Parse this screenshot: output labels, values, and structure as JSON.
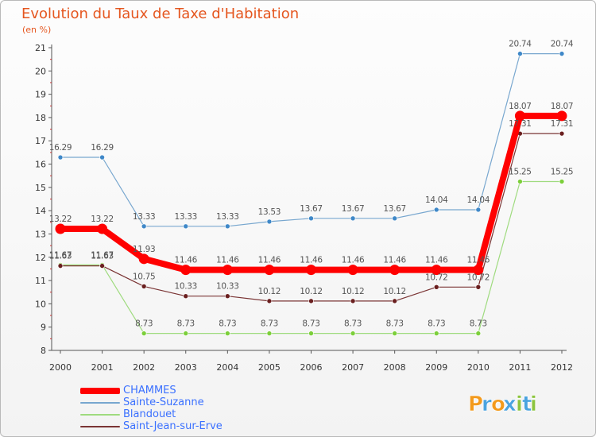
{
  "chart_data": {
    "type": "line",
    "title": "Evolution du Taux de Taxe d'Habitation",
    "subtitle": "(en %)",
    "x": [
      "2000",
      "2001",
      "2002",
      "2003",
      "2004",
      "2005",
      "2006",
      "2007",
      "2008",
      "2009",
      "2010",
      "2011",
      "2012"
    ],
    "ylim": [
      8,
      21
    ],
    "yticks": [
      8,
      9,
      10,
      11,
      12,
      13,
      14,
      15,
      16,
      17,
      18,
      19,
      20,
      21
    ],
    "grid": false,
    "legend_position": "bottom-left",
    "series": [
      {
        "name": "CHAMMES",
        "color": "#ff0000",
        "marker_color": "#ff0000",
        "values": [
          13.22,
          13.22,
          11.93,
          11.46,
          11.46,
          11.46,
          11.46,
          11.46,
          11.46,
          11.46,
          11.46,
          18.07,
          18.07
        ],
        "labels": [
          "13.22",
          "13.22",
          "11.93",
          "11.46",
          "11.46",
          "11.46",
          "11.46",
          "11.46",
          "11.46",
          "11.46",
          "11.46",
          "18.07",
          "18.07"
        ]
      },
      {
        "name": "Sainte-Suzanne",
        "color": "#78a7cf",
        "marker_color": "#3f88c8",
        "values": [
          16.29,
          16.29,
          13.33,
          13.33,
          13.33,
          13.53,
          13.67,
          13.67,
          13.67,
          14.04,
          14.04,
          20.74,
          20.74
        ],
        "labels": [
          "16.29",
          "16.29",
          "13.33",
          "13.33",
          "13.33",
          "13.53",
          "13.67",
          "13.67",
          "13.67",
          "14.04",
          "14.04",
          "20.74",
          "20.74"
        ]
      },
      {
        "name": "Blandouet",
        "color": "#9fdb7f",
        "marker_color": "#7ccf3a",
        "values": [
          11.67,
          11.67,
          8.73,
          8.73,
          8.73,
          8.73,
          8.73,
          8.73,
          8.73,
          8.73,
          8.73,
          15.25,
          15.25
        ],
        "labels": [
          "11.67",
          "11.67",
          "8.73",
          "8.73",
          "8.73",
          "8.73",
          "8.73",
          "8.73",
          "8.73",
          "8.73",
          "8.73",
          "15.25",
          "15.25"
        ]
      },
      {
        "name": "Saint-Jean-sur-Erve",
        "color": "#7a3434",
        "marker_color": "#6a1f1f",
        "values": [
          11.63,
          11.63,
          10.75,
          10.33,
          10.33,
          10.12,
          10.12,
          10.12,
          10.12,
          10.72,
          10.72,
          17.31,
          17.31
        ],
        "labels": [
          "11.63",
          "11.63",
          "10.75",
          "10.33",
          "10.33",
          "10.12",
          "10.12",
          "10.12",
          "10.12",
          "10.72",
          "10.72",
          "17.31",
          "17.31"
        ]
      }
    ]
  },
  "logo": {
    "text": "Proxiti",
    "letter_colors": [
      "#f39a1c",
      "#4aa3df",
      "#f39a1c",
      "#4aa3df",
      "#8cc43f",
      "#4aa3df",
      "#8cc43f"
    ]
  },
  "colors": {
    "title": "#e5561f",
    "axis": "#555555",
    "legend_text": "#3a70ff",
    "label": "#555555"
  }
}
